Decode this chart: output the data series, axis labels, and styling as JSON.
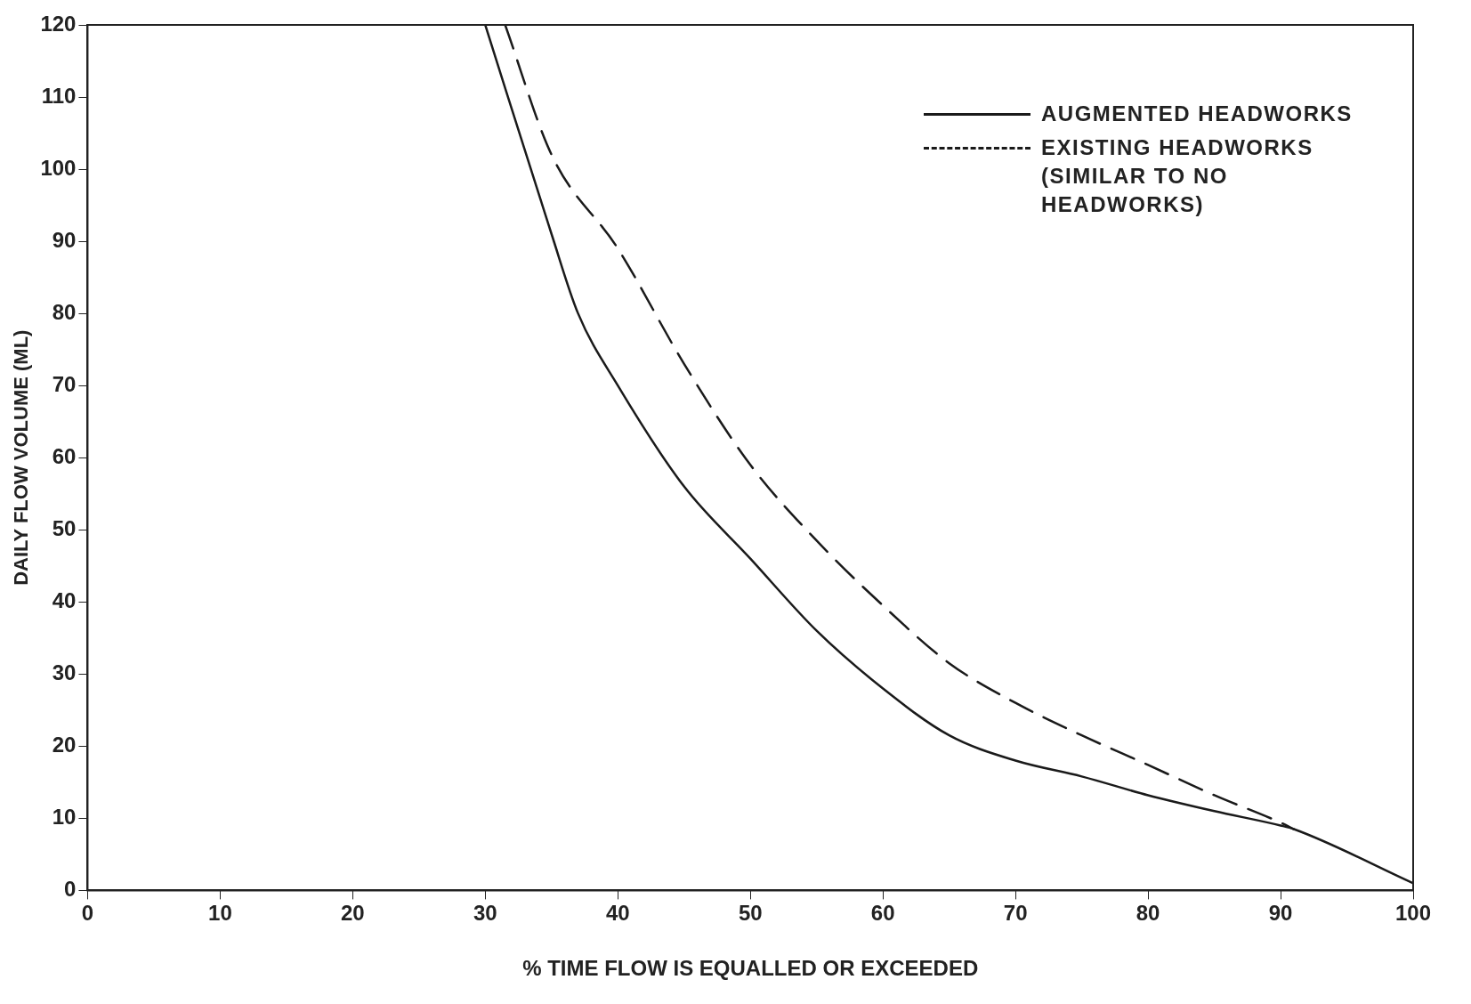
{
  "chart_data": {
    "type": "line",
    "xlabel": "% TIME FLOW IS EQUALLED OR EXCEEDED",
    "ylabel": "DAILY FLOW VOLUME (ML)",
    "xlim": [
      0,
      100
    ],
    "xticks": [
      0,
      10,
      20,
      30,
      40,
      50,
      60,
      70,
      80,
      90,
      100
    ],
    "ylim": [
      0,
      120
    ],
    "yticks": [
      0,
      10,
      20,
      30,
      40,
      50,
      60,
      70,
      80,
      90,
      100,
      110,
      120
    ],
    "grid": false,
    "legend": "top right",
    "marker": "none",
    "series": [
      {
        "name": "AUGMENTED HEADWORKS",
        "color": "#1a1a1a",
        "line_style": "solid",
        "x": [
          30,
          35,
          37,
          40,
          45,
          50,
          55,
          60,
          65,
          70,
          75,
          80,
          85,
          90,
          91,
          100
        ],
        "values": [
          120,
          91,
          80,
          70,
          56,
          46,
          36,
          28,
          21.5,
          18,
          15.8,
          13.2,
          11,
          9,
          8.5,
          1
        ]
      },
      {
        "name": "EXISTING HEADWORKS (SIMILAR TO NO HEADWORKS)",
        "color": "#1a1a1a",
        "line_style": "dashed",
        "x": [
          31.5,
          35,
          40,
          45,
          50,
          55,
          60,
          65,
          70,
          75,
          80,
          85,
          90,
          91
        ],
        "values": [
          120,
          102,
          89,
          73,
          59,
          48.5,
          39.5,
          31.5,
          26,
          21.5,
          17.4,
          13.2,
          9.4,
          8.5
        ]
      }
    ]
  }
}
